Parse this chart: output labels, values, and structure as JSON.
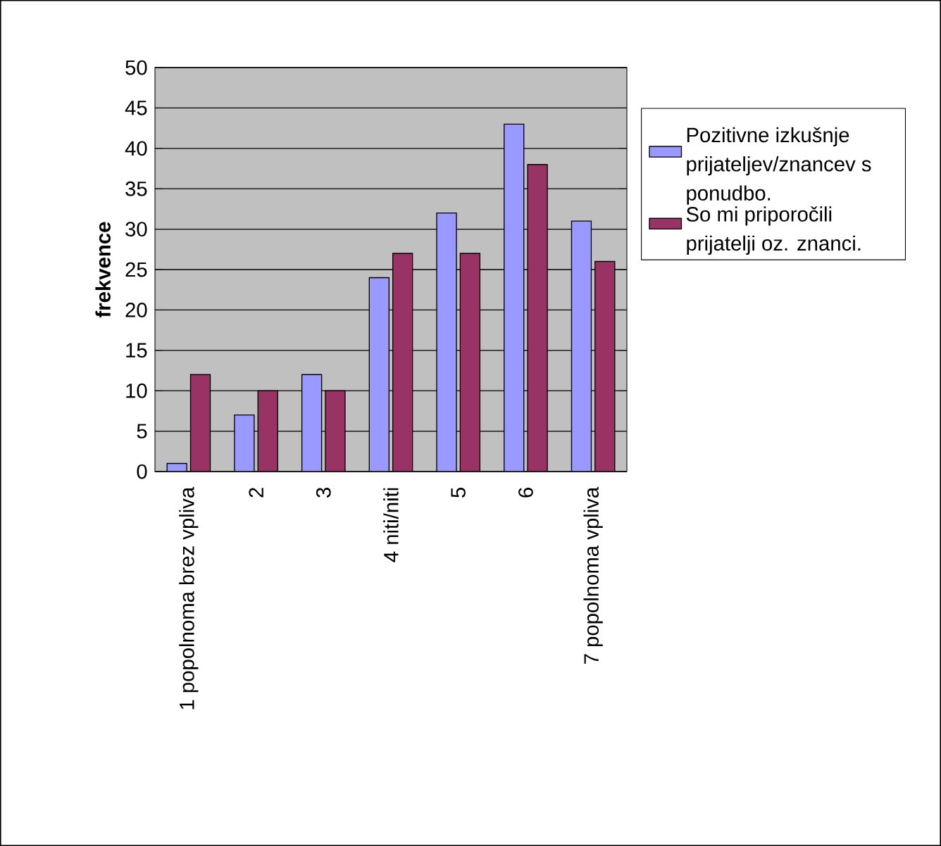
{
  "chart_data": {
    "type": "bar",
    "ylabel": "frekvence",
    "categories": [
      "1 popolnoma brez vpliva",
      "2",
      "3",
      "4 niti/niti",
      "5",
      "6",
      "7 popolnoma vpliva"
    ],
    "series": [
      {
        "name": "Pozitivne izkušnje prijateljev/znancev s ponudbo.",
        "color": "#9999ff",
        "values": [
          1,
          7,
          12,
          24,
          32,
          43,
          31
        ]
      },
      {
        "name": "So mi priporočili prijatelji oz. znanci.",
        "color": "#993366",
        "values": [
          12,
          10,
          10,
          27,
          27,
          38,
          26
        ]
      }
    ],
    "ylim": [
      0,
      50
    ],
    "yticks": [
      0,
      5,
      10,
      15,
      20,
      25,
      30,
      35,
      40,
      45,
      50
    ],
    "grid": "y",
    "legend": "right"
  }
}
